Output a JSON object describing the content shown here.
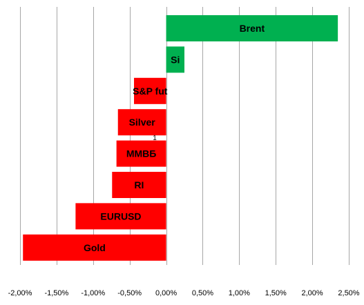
{
  "chart_data": {
    "type": "bar",
    "orientation": "horizontal",
    "categories": [
      "Brent",
      "Si",
      "S&P fut",
      "Silver",
      "ММВБ",
      "RI",
      "EURUSD",
      "Gold"
    ],
    "values": [
      2.35,
      0.25,
      -0.44,
      -0.66,
      -0.68,
      -0.74,
      -1.24,
      -1.96
    ],
    "x_tick_labels": [
      "-2,00%",
      "-1,50%",
      "-1,00%",
      "-0,50%",
      "0,00%",
      "0,50%",
      "1,00%",
      "1,50%",
      "2,00%",
      "2,50%"
    ],
    "xlim": [
      -2.0,
      2.5
    ],
    "x_tick_step": 0.5,
    "grid": "vertical",
    "stray_label": "1",
    "colors": {
      "positive": "#00b050",
      "negative": "#ff0000",
      "gridline": "#a6a6a6",
      "text": "#000000"
    }
  }
}
